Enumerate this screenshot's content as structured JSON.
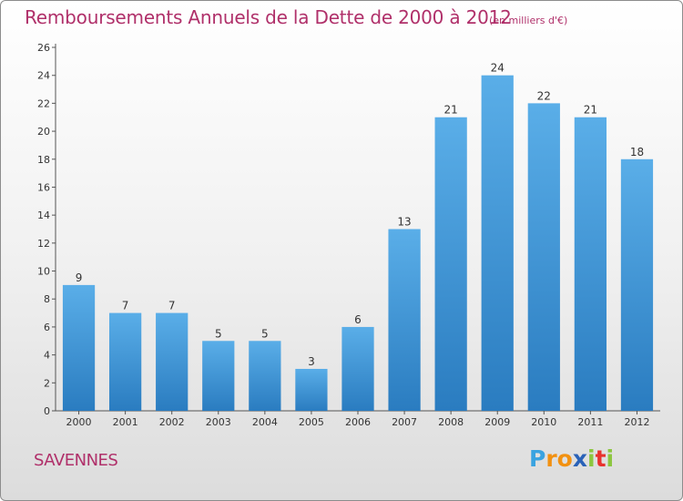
{
  "header": {
    "title": "Remboursements Annuels de la Dette de 2000 à 2012",
    "subtitle": "(en milliers d'€)"
  },
  "footer": {
    "city": "SAVENNES",
    "logo_letters": [
      "P",
      "r",
      "o",
      "x",
      "i",
      "t",
      "i"
    ],
    "logo_colors": [
      "#3aa3e0",
      "#f29111",
      "#f29111",
      "#2a62b8",
      "#8cc63f",
      "#e8322e",
      "#8cc63f"
    ]
  },
  "colors": {
    "bar_top": "#5aaee8",
    "bar_bottom": "#2a7cc0",
    "text": "#b0306a"
  },
  "chart_data": {
    "type": "bar",
    "categories": [
      "2000",
      "2001",
      "2002",
      "2003",
      "2004",
      "2005",
      "2006",
      "2007",
      "2008",
      "2009",
      "2010",
      "2011",
      "2012"
    ],
    "values": [
      9,
      7,
      7,
      5,
      5,
      3,
      6,
      13,
      21,
      24,
      22,
      21,
      18
    ],
    "title": "Remboursements Annuels de la Dette de 2000 à 2012",
    "xlabel": "",
    "ylabel": "",
    "ylim": [
      0,
      26
    ],
    "yticks": [
      0,
      2,
      4,
      6,
      8,
      10,
      12,
      14,
      16,
      18,
      20,
      22,
      24,
      26
    ],
    "grid": false,
    "data_labels": true
  }
}
